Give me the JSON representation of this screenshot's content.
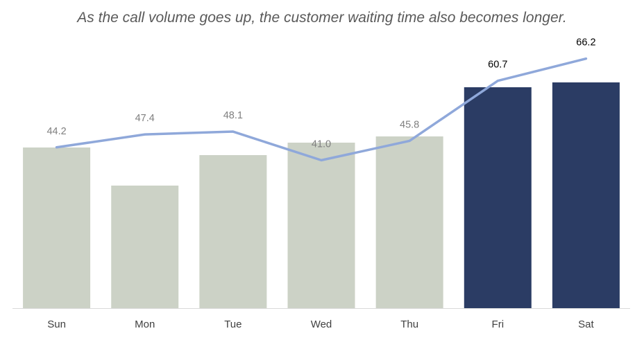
{
  "title": "As the call volume goes up, the customer waiting time also becomes longer.",
  "colors": {
    "bar_normal": "#ccd2c6",
    "bar_highlight": "#2b3c64",
    "line": "#8fa8da",
    "label_normal": "#7f7f7f",
    "label_highlight": "#000000",
    "axis": "#d9d9d9"
  },
  "chart_data": {
    "type": "bar",
    "categories": [
      "Sun",
      "Mon",
      "Tue",
      "Wed",
      "Thu",
      "Fri",
      "Sat"
    ],
    "highlighted": [
      "Fri",
      "Sat"
    ],
    "series": [
      {
        "type": "bar",
        "values": [
          232,
          177,
          221,
          239,
          248,
          319,
          326
        ],
        "note": "bar heights estimated; no axis or labels printed"
      },
      {
        "type": "line",
        "values": [
          44.2,
          47.4,
          48.1,
          41.0,
          45.8,
          60.7,
          66.2
        ],
        "labels": [
          "44.2",
          "47.4",
          "48.1",
          "41.0",
          "45.8",
          "60.7",
          "66.2"
        ]
      }
    ],
    "grid": false,
    "legend": "none"
  }
}
